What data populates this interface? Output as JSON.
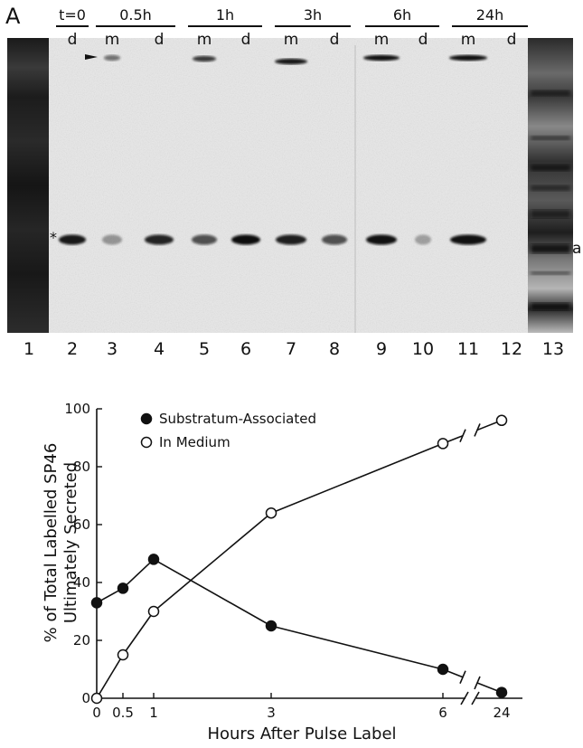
{
  "panel_label": "A",
  "gel": {
    "header_groups": [
      {
        "label": "t=0",
        "sub": [
          "d"
        ]
      },
      {
        "label": "0.5h",
        "sub": [
          "m",
          "d"
        ]
      },
      {
        "label": "1h",
        "sub": [
          "m",
          "d"
        ]
      },
      {
        "label": "3h",
        "sub": [
          "m",
          "d"
        ]
      },
      {
        "label": "6h",
        "sub": [
          "m",
          "d"
        ]
      },
      {
        "label": "24h",
        "sub": [
          "m",
          "d"
        ]
      }
    ],
    "lane_numbers": [
      "1",
      "2",
      "3",
      "4",
      "5",
      "6",
      "7",
      "8",
      "9",
      "10",
      "11",
      "12",
      "13"
    ],
    "band_marker": "a",
    "band_star": "*"
  },
  "chart_data": {
    "type": "line",
    "ylabel_line1": "% of Total Labelled SP46",
    "ylabel_line2": "Ultimately Secreted",
    "xlabel": "Hours After Pulse Label",
    "x_ticks": [
      "0",
      "0.5",
      "1",
      "3",
      "6",
      "24"
    ],
    "y_ticks": [
      "0",
      "20",
      "40",
      "60",
      "80",
      "100"
    ],
    "ylim": [
      0,
      100
    ],
    "x_axis_break": "between 6 and 24",
    "series": [
      {
        "name": "Substratum-Associated",
        "marker": "filled-circle",
        "x": [
          0,
          0.5,
          1,
          3,
          6,
          24
        ],
        "values": [
          33,
          38,
          48,
          25,
          10,
          2
        ]
      },
      {
        "name": "In Medium",
        "marker": "open-circle",
        "x": [
          0,
          0.5,
          1,
          3,
          6,
          24
        ],
        "values": [
          0,
          15,
          30,
          64,
          88,
          96
        ]
      }
    ],
    "legend_position": "top-left"
  }
}
